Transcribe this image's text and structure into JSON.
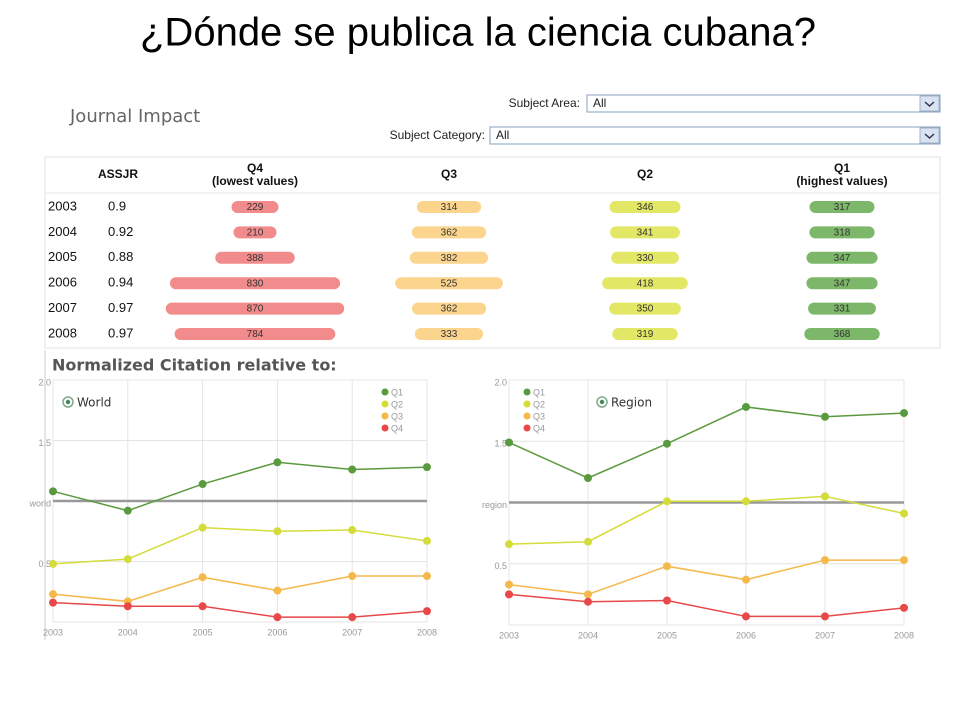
{
  "title": "¿Dónde se publica la ciencia cubana?",
  "panel_title": "Journal Impact",
  "filters": [
    {
      "label": "Subject Area:",
      "value": "All"
    },
    {
      "label": "Subject Category:",
      "value": "All"
    }
  ],
  "table": {
    "columns": [
      {
        "label": "ASSJR"
      },
      {
        "label": "Q4",
        "sublabel": "(lowest values)",
        "color": "#f28b8b"
      },
      {
        "label": "Q3",
        "color": "#fbd48e"
      },
      {
        "label": "Q2",
        "color": "#e2e866"
      },
      {
        "label": "Q1",
        "sublabel": "(highest values)",
        "color": "#7db86a"
      }
    ],
    "rows": [
      {
        "year": "2003",
        "assjr": 0.9,
        "quartiles": [
          229,
          314,
          346,
          317
        ]
      },
      {
        "year": "2004",
        "assjr": 0.92,
        "quartiles": [
          210,
          362,
          341,
          318
        ]
      },
      {
        "year": "2005",
        "assjr": 0.88,
        "quartiles": [
          388,
          382,
          330,
          347
        ]
      },
      {
        "year": "2006",
        "assjr": 0.94,
        "quartiles": [
          830,
          525,
          418,
          347
        ]
      },
      {
        "year": "2007",
        "assjr": 0.97,
        "quartiles": [
          870,
          362,
          350,
          331
        ]
      },
      {
        "year": "2008",
        "assjr": 0.97,
        "quartiles": [
          784,
          333,
          319,
          368
        ]
      }
    ]
  },
  "section_title": "Normalized Citation relative to:",
  "chart_data": [
    {
      "type": "line",
      "radio_label": "World",
      "categories": [
        "2003",
        "2004",
        "2005",
        "2006",
        "2007",
        "2008"
      ],
      "ylim": [
        0,
        2
      ],
      "yticks": [
        {
          "value": 2,
          "label": "2.0"
        },
        1.5,
        {
          "value": 1,
          "label": "world"
        },
        0.5
      ],
      "reference_line": 1,
      "grid": true,
      "legend_position": "top-right",
      "series": [
        {
          "name": "Q1",
          "color": "#5a9a3e",
          "values": [
            1.08,
            0.92,
            1.14,
            1.32,
            1.26,
            1.28
          ]
        },
        {
          "name": "Q2",
          "color": "#d4dc3a",
          "values": [
            0.48,
            0.52,
            0.78,
            0.75,
            0.76,
            0.67
          ]
        },
        {
          "name": "Q3",
          "color": "#f5b84a",
          "values": [
            0.23,
            0.17,
            0.37,
            0.26,
            0.38,
            0.38
          ]
        },
        {
          "name": "Q4",
          "color": "#e84848",
          "values": [
            0.16,
            0.13,
            0.13,
            0.04,
            0.04,
            0.09
          ]
        }
      ]
    },
    {
      "type": "line",
      "radio_label": "Region",
      "categories": [
        "2003",
        "2004",
        "2005",
        "2006",
        "2007",
        "2008"
      ],
      "ylim": [
        0,
        2
      ],
      "yticks": [
        {
          "value": 2,
          "label": "2.0"
        },
        1.5,
        {
          "value": 1,
          "label": "region"
        },
        0.5
      ],
      "reference_line": 1,
      "grid": true,
      "legend_position": "top-left",
      "series": [
        {
          "name": "Q1",
          "color": "#5a9a3e",
          "values": [
            1.49,
            1.2,
            1.48,
            1.78,
            1.7,
            1.73
          ]
        },
        {
          "name": "Q2",
          "color": "#d4dc3a",
          "values": [
            0.66,
            0.68,
            1.01,
            1.01,
            1.05,
            0.91
          ]
        },
        {
          "name": "Q3",
          "color": "#f5b84a",
          "values": [
            0.33,
            0.25,
            0.48,
            0.37,
            0.53,
            0.53
          ]
        },
        {
          "name": "Q4",
          "color": "#e84848",
          "values": [
            0.25,
            0.19,
            0.2,
            0.07,
            0.07,
            0.14
          ]
        }
      ]
    }
  ]
}
